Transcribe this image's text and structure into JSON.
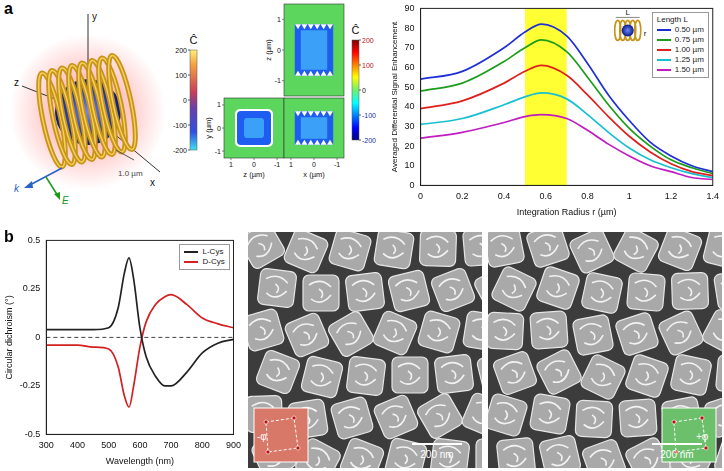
{
  "panel_labels": [
    "a",
    "b"
  ],
  "helix_render": {
    "axis_labels": [
      "y",
      "x",
      "z"
    ],
    "wave_labels": [
      "k",
      "E"
    ],
    "scale_label": "1.0 µm",
    "colorbar": {
      "label": "Ĉ",
      "range": [
        -200,
        200
      ],
      "ticks": [
        200,
        100,
        0,
        -100,
        -200
      ]
    }
  },
  "field_maps": {
    "colorbar": {
      "label": "Ĉ",
      "range": [
        -200,
        200
      ],
      "ticks": [
        200,
        100,
        0,
        -100,
        -200
      ]
    },
    "panels": [
      {
        "ylabel": "z (µm)",
        "ylim": [
          -1.5,
          1.5
        ],
        "yticks": [
          1,
          0,
          -1
        ]
      },
      {
        "xlabel": "z (µm)",
        "ylabel": "y (µm)",
        "xlim": [
          1.3,
          -1.3
        ],
        "ylim": [
          -1.3,
          1.3
        ],
        "xticks": [
          1,
          0,
          -1
        ],
        "yticks": [
          1,
          0,
          -1
        ]
      },
      {
        "xlabel": "x (µm)",
        "xlim": [
          1.3,
          -1.3
        ],
        "xticks": [
          1,
          0,
          -1
        ]
      }
    ]
  },
  "sem_images": [
    {
      "scale_bar": "200 nm",
      "inset_labels": [
        "-φ"
      ]
    },
    {
      "scale_bar": "200 nm",
      "inset_labels": [
        "+φ"
      ]
    }
  ],
  "chart_data": [
    {
      "type": "line",
      "xlabel": "Integration Radius r (µm)",
      "ylabel": "Averaged Differential Signal Enhancement",
      "legend_title": "Length L",
      "legend": "upper right",
      "annotations": [
        "L",
        "r"
      ],
      "band": [
        0.5,
        0.7
      ],
      "grid": false,
      "marker": "none",
      "line_style": "solid",
      "x": [
        0,
        0.2,
        0.4,
        0.5,
        0.58,
        0.7,
        0.8,
        0.9,
        1.0,
        1.1,
        1.2,
        1.3,
        1.4
      ],
      "series": [
        {
          "name": "0.50 µm",
          "color": "#1f2fd6",
          "values": [
            54,
            58,
            70,
            78,
            82,
            76,
            62,
            46,
            33,
            22,
            15,
            10,
            7
          ]
        },
        {
          "name": "0.75 µm",
          "color": "#1a9e1a",
          "values": [
            48,
            52,
            63,
            70,
            74,
            68,
            55,
            41,
            29,
            20,
            13,
            9,
            6
          ]
        },
        {
          "name": "1.00 µm",
          "color": "#e0201c",
          "values": [
            39,
            43,
            52,
            58,
            61,
            56,
            46,
            35,
            25,
            17,
            11,
            7,
            5
          ]
        },
        {
          "name": "1.25 µm",
          "color": "#17c0d0",
          "values": [
            31,
            34,
            41,
            45,
            47,
            44,
            36,
            27,
            19,
            13,
            9,
            6,
            4
          ]
        },
        {
          "name": "1.50 µm",
          "color": "#c01cc0",
          "values": [
            24,
            27,
            32,
            35,
            36,
            34,
            28,
            21,
            15,
            10,
            7,
            4,
            3
          ]
        }
      ],
      "xlim": [
        0,
        1.4
      ],
      "xticks": [
        0,
        0.2,
        0.4,
        0.6,
        0.8,
        1,
        1.2,
        1.4
      ],
      "ylim": [
        0,
        90
      ],
      "yticks": [
        0,
        10,
        20,
        30,
        40,
        50,
        60,
        70,
        80,
        90
      ]
    },
    {
      "type": "line",
      "xlabel": "Wavelength (nm)",
      "ylabel": "Circular dichroism (°)",
      "legend": "upper right",
      "grid": false,
      "marker": "none",
      "line_style": "solid",
      "hline": 0,
      "x": [
        300,
        400,
        450,
        500,
        530,
        550,
        565,
        580,
        600,
        620,
        650,
        680,
        700,
        750,
        800,
        850,
        900
      ],
      "series": [
        {
          "name": "L-Cys",
          "color": "#222222",
          "values": [
            0.04,
            0.04,
            0.04,
            0.05,
            0.15,
            0.33,
            0.41,
            0.3,
            0.05,
            -0.1,
            -0.2,
            -0.25,
            -0.25,
            -0.18,
            -0.08,
            -0.03,
            -0.01
          ]
        },
        {
          "name": "D-Cys",
          "color": "#d42020",
          "values": [
            -0.04,
            -0.04,
            -0.05,
            -0.06,
            -0.15,
            -0.3,
            -0.36,
            -0.25,
            -0.05,
            0.08,
            0.17,
            0.21,
            0.22,
            0.17,
            0.1,
            0.07,
            0.05
          ]
        }
      ],
      "xlim": [
        300,
        900
      ],
      "xticks": [
        300,
        400,
        500,
        600,
        700,
        800,
        900
      ],
      "ylim": [
        -0.5,
        0.5
      ],
      "yticks": [
        -0.5,
        -0.25,
        0,
        0.25,
        0.5
      ]
    }
  ]
}
